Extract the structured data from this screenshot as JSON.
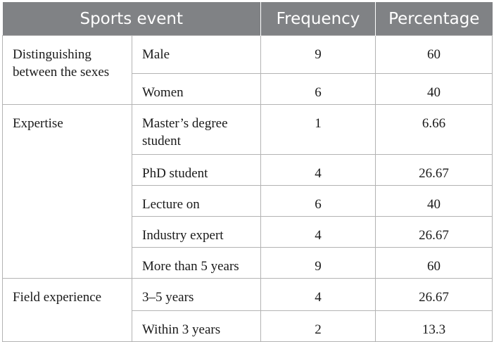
{
  "table": {
    "headers": [
      "Sports event",
      "Frequency",
      "Percentage"
    ],
    "groups": [
      {
        "label": "Distinguishing between the sexes",
        "rows": [
          {
            "item": "Male",
            "frequency": "9",
            "percentage": "60"
          },
          {
            "item": "Women",
            "frequency": "6",
            "percentage": "40"
          }
        ]
      },
      {
        "label": "Expertise",
        "rows": [
          {
            "item": "Master’s degree student",
            "frequency": "1",
            "percentage": "6.66"
          },
          {
            "item": "PhD student",
            "frequency": "4",
            "percentage": "26.67"
          },
          {
            "item": "Lecture on",
            "frequency": "6",
            "percentage": "40"
          },
          {
            "item": "Industry expert",
            "frequency": "4",
            "percentage": "26.67"
          },
          {
            "item": "More than 5 years",
            "frequency": "9",
            "percentage": "60"
          }
        ]
      },
      {
        "label": "Field experience",
        "rows": [
          {
            "item": "3–5 years",
            "frequency": "4",
            "percentage": "26.67"
          },
          {
            "item": "Within 3 years",
            "frequency": "2",
            "percentage": "13.3"
          }
        ]
      }
    ]
  }
}
